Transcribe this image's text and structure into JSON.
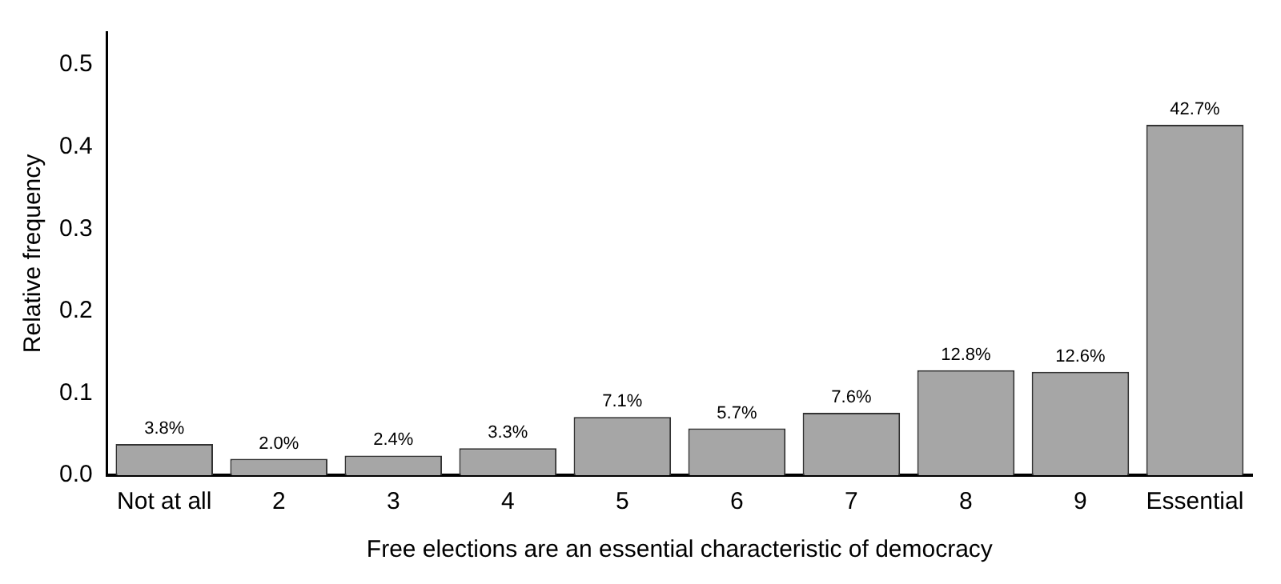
{
  "chart_data": {
    "type": "bar",
    "xlabel": "Free elections are an essential characteristic of democracy",
    "ylabel": "Relative frequency",
    "categories": [
      "Not at all",
      "2",
      "3",
      "4",
      "5",
      "6",
      "7",
      "8",
      "9",
      "Essential"
    ],
    "values": [
      0.038,
      0.02,
      0.024,
      0.033,
      0.071,
      0.057,
      0.076,
      0.128,
      0.126,
      0.427
    ],
    "value_labels": [
      "3.8%",
      "2.0%",
      "2.4%",
      "3.3%",
      "7.1%",
      "5.7%",
      "7.6%",
      "12.8%",
      "12.6%",
      "42.7%"
    ],
    "color": "#a6a6a6",
    "ylim": [
      0,
      0.54
    ],
    "yticks": [
      {
        "value": 0,
        "label": "0.0"
      },
      {
        "value": 0.1,
        "label": "0.1"
      },
      {
        "value": 0.2,
        "label": "0.2"
      },
      {
        "value": 0.3,
        "label": "0.3"
      },
      {
        "value": 0.4,
        "label": "0.4"
      },
      {
        "value": 0.5,
        "label": "0.5"
      }
    ],
    "grid": false,
    "legend": false
  }
}
